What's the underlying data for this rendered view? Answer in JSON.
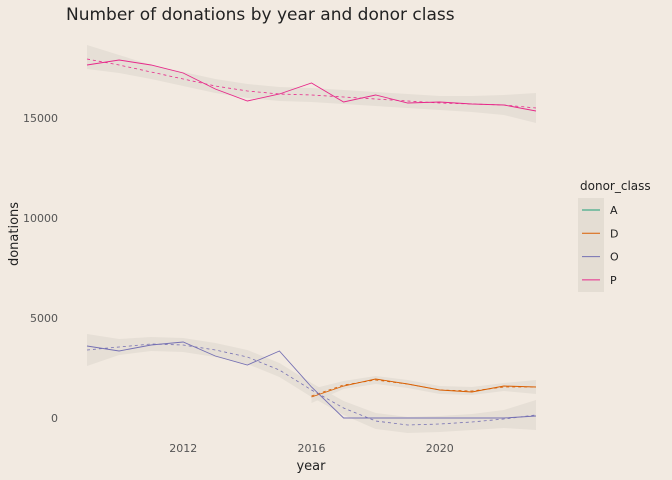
{
  "chart_data": {
    "type": "line",
    "title": "Number of donations by year and donor class",
    "xlabel": "year",
    "ylabel": "donations",
    "xlim": [
      2009,
      2023
    ],
    "ylim": [
      -700,
      19000
    ],
    "x_ticks": [
      2012,
      2016,
      2020
    ],
    "y_ticks": [
      0,
      5000,
      10000,
      15000
    ],
    "grid": false,
    "legend": {
      "title": "donor_class",
      "position": "right",
      "entries": [
        "A",
        "D",
        "O",
        "P"
      ]
    },
    "smoothing": {
      "line_style": "dashed",
      "band_color": "#e4ddd3"
    },
    "series": [
      {
        "name": "A",
        "color": "#1b9e77",
        "x": [],
        "values": [],
        "smooth_x": [],
        "smooth": [],
        "smooth_lo": [],
        "smooth_hi": []
      },
      {
        "name": "D",
        "color": "#d95f02",
        "x": [
          2016,
          2017,
          2018,
          2019,
          2020,
          2021,
          2022,
          2023
        ],
        "values": [
          1050,
          1600,
          1950,
          1700,
          1400,
          1300,
          1600,
          1550
        ],
        "smooth_x": [
          2016,
          2017,
          2018,
          2019,
          2020,
          2021,
          2022,
          2023
        ],
        "smooth": [
          1100,
          1650,
          1900,
          1700,
          1400,
          1350,
          1550,
          1550
        ],
        "smooth_lo": [
          750,
          1450,
          1700,
          1500,
          1200,
          1150,
          1350,
          1200
        ],
        "smooth_hi": [
          1450,
          1850,
          2100,
          1900,
          1600,
          1550,
          1750,
          1900
        ]
      },
      {
        "name": "O",
        "color": "#7570b3",
        "x": [
          2009,
          2010,
          2011,
          2012,
          2013,
          2014,
          2015,
          2016,
          2017,
          2018,
          2019,
          2020,
          2021,
          2022,
          2023
        ],
        "values": [
          3600,
          3350,
          3650,
          3800,
          3100,
          2650,
          3350,
          1550,
          0,
          0,
          0,
          0,
          0,
          0,
          100
        ],
        "smooth_x": [
          2009,
          2010,
          2011,
          2012,
          2013,
          2014,
          2015,
          2016,
          2017,
          2018,
          2019,
          2020,
          2021,
          2022,
          2023
        ],
        "smooth": [
          3400,
          3550,
          3700,
          3650,
          3400,
          3050,
          2400,
          1400,
          500,
          -150,
          -350,
          -300,
          -200,
          -50,
          150
        ],
        "smooth_lo": [
          2600,
          3150,
          3350,
          3300,
          3050,
          2700,
          2050,
          1050,
          150,
          -550,
          -750,
          -700,
          -600,
          -500,
          -600
        ],
        "smooth_hi": [
          4200,
          3950,
          4050,
          4000,
          3750,
          3400,
          2750,
          1750,
          850,
          250,
          50,
          100,
          200,
          400,
          900
        ]
      },
      {
        "name": "P",
        "color": "#e7298a",
        "x": [
          2009,
          2010,
          2011,
          2012,
          2013,
          2014,
          2015,
          2016,
          2017,
          2018,
          2019,
          2020,
          2021,
          2022,
          2023
        ],
        "values": [
          17650,
          17900,
          17650,
          17250,
          16450,
          15850,
          16200,
          16750,
          15800,
          16150,
          15750,
          15800,
          15700,
          15650,
          15350
        ],
        "smooth_x": [
          2009,
          2010,
          2011,
          2012,
          2013,
          2014,
          2015,
          2016,
          2017,
          2018,
          2019,
          2020,
          2021,
          2022,
          2023
        ],
        "smooth": [
          17950,
          17650,
          17300,
          16950,
          16600,
          16350,
          16200,
          16150,
          16050,
          15950,
          15850,
          15750,
          15700,
          15650,
          15500
        ],
        "smooth_lo": [
          17450,
          17250,
          16950,
          16600,
          16250,
          16000,
          15850,
          15800,
          15700,
          15600,
          15500,
          15400,
          15300,
          15150,
          14750
        ],
        "smooth_hi": [
          18650,
          18150,
          17650,
          17300,
          16950,
          16700,
          16550,
          16500,
          16400,
          16300,
          16200,
          16100,
          16100,
          16150,
          16250
        ]
      }
    ]
  }
}
